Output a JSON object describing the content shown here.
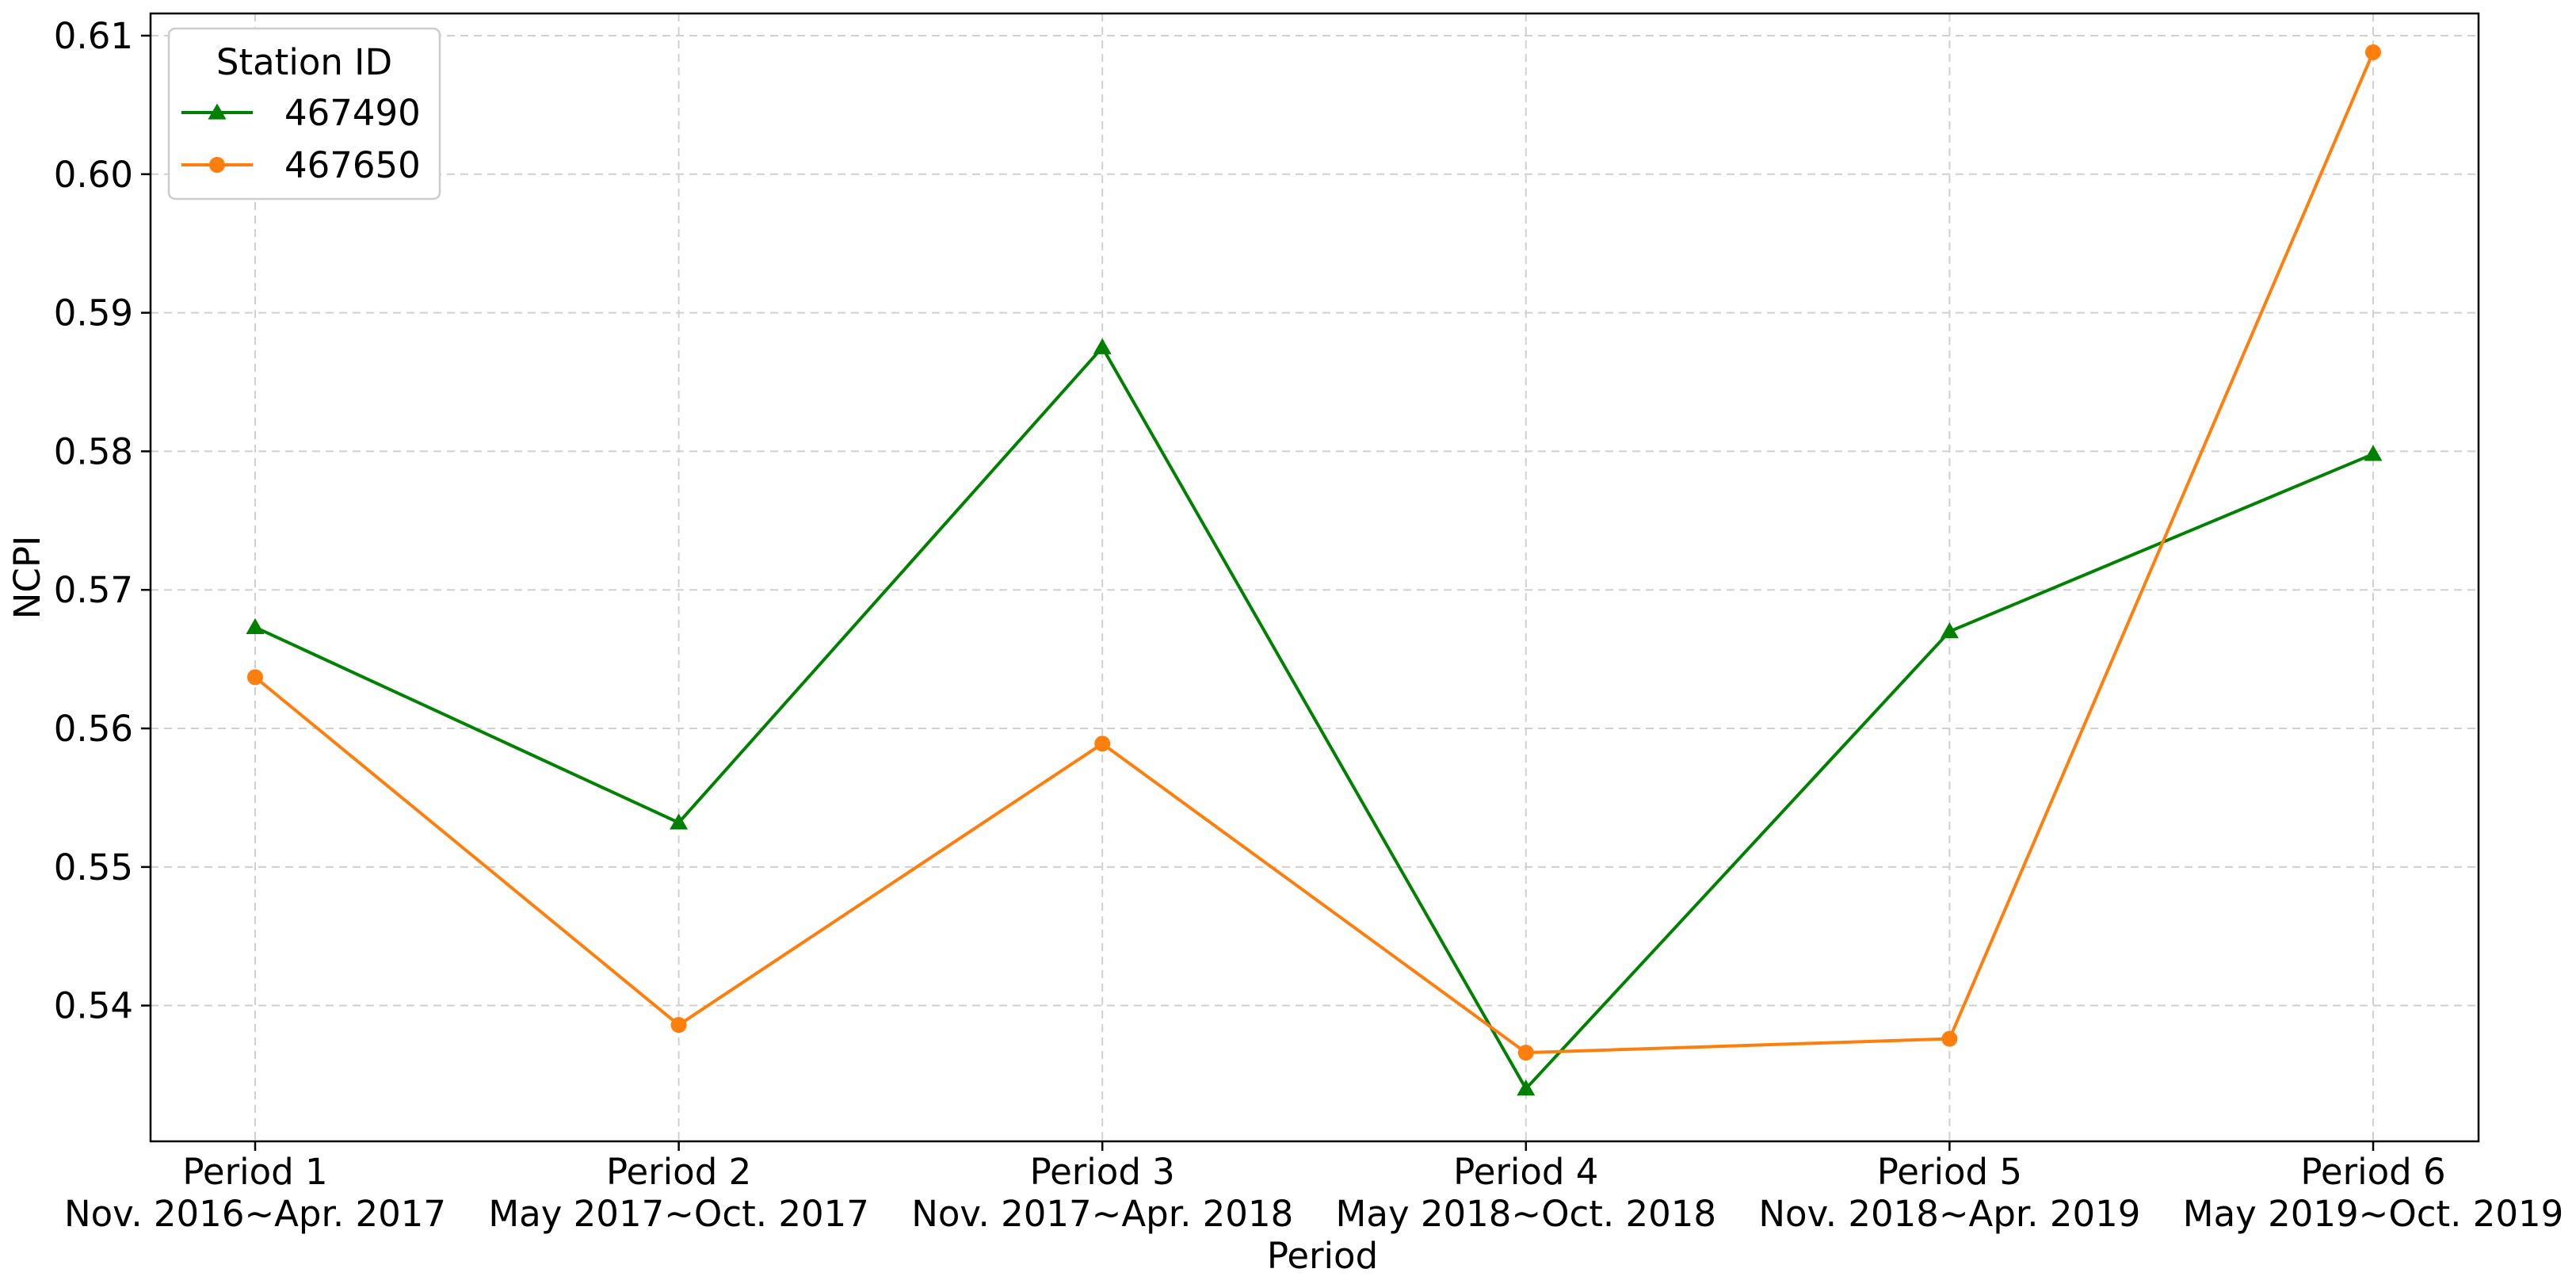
{
  "chart_data": {
    "type": "line",
    "categories": [
      [
        "Period 1",
        "Nov. 2016~Apr. 2017"
      ],
      [
        "Period 2",
        "May 2017~Oct. 2017"
      ],
      [
        "Period 3",
        "Nov. 2017~Apr. 2018"
      ],
      [
        "Period 4",
        "May 2018~Oct. 2018"
      ],
      [
        "Period 5",
        "Nov. 2018~Apr. 2019"
      ],
      [
        "Period 6",
        "May 2019~Oct. 2019"
      ]
    ],
    "series": [
      {
        "name": "467490",
        "color": "#008000",
        "marker": "triangle",
        "values": [
          0.5673,
          0.5532,
          0.5875,
          0.534,
          0.567,
          0.5798
        ]
      },
      {
        "name": "467650",
        "color": "#ff7f0e",
        "marker": "circle",
        "values": [
          0.5637,
          0.5386,
          0.5589,
          0.5366,
          0.5376,
          0.6088
        ]
      }
    ],
    "xlabel": "Period",
    "ylabel": "NCPI",
    "ylim": [
      0.5302,
      0.6116
    ],
    "yticks": [
      0.54,
      0.55,
      0.56,
      0.57,
      0.58,
      0.59,
      0.6,
      0.61
    ],
    "ytick_labels": [
      "0.54",
      "0.55",
      "0.56",
      "0.57",
      "0.58",
      "0.59",
      "0.60",
      "0.61"
    ],
    "grid": true,
    "legend": {
      "title": "Station ID",
      "placement": "top-left"
    }
  }
}
